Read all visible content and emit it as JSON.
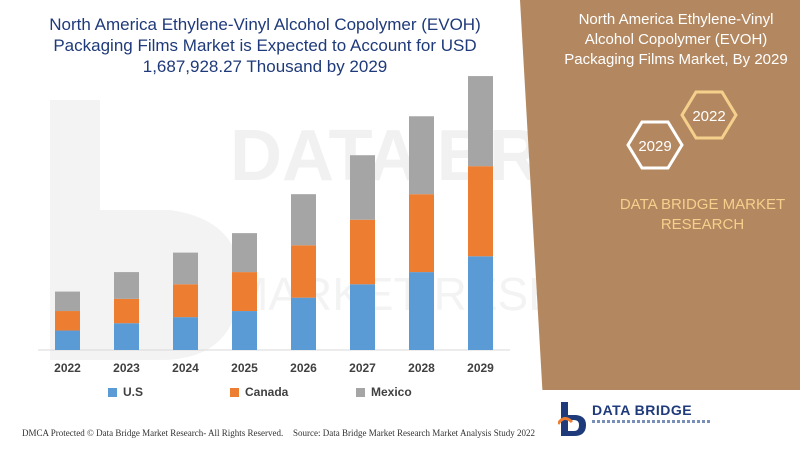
{
  "title": "North America Ethylene-Vinyl Alcohol Copolymer (EVOH) Packaging Films Market is Expected to Account for USD 1,687,928.27 Thousand by 2029",
  "side_panel": {
    "title": "North America Ethylene-Vinyl Alcohol Copolymer (EVOH) Packaging Films Market, By 2029",
    "hex_year_1": "2022",
    "hex_year_2": "2029",
    "brand": "DATA BRIDGE MARKET RESEARCH",
    "color": "#b38860"
  },
  "logo": {
    "name": "DATA BRIDGE"
  },
  "footer": {
    "left": "DMCA Protected © Data Bridge Market Research- All Rights Reserved.",
    "right": "Source: Data Bridge Market Research Market Analysis Study 2022"
  },
  "chart_data": {
    "type": "bar",
    "stacked": true,
    "categories": [
      "2022",
      "2023",
      "2024",
      "2025",
      "2026",
      "2027",
      "2028",
      "2029"
    ],
    "series": [
      {
        "name": "U.S",
        "color": "#5b9bd5",
        "values": [
          16,
          22,
          27,
          32,
          43,
          54,
          64,
          77
        ]
      },
      {
        "name": "Canada",
        "color": "#ed7d31",
        "values": [
          16,
          20,
          27,
          32,
          43,
          53,
          64,
          74
        ]
      },
      {
        "name": "Mexico",
        "color": "#a5a5a5",
        "values": [
          16,
          22,
          26,
          32,
          42,
          53,
          64,
          74
        ]
      }
    ],
    "ylim": [
      0,
      230
    ],
    "grid": false,
    "legend": "bottom"
  }
}
